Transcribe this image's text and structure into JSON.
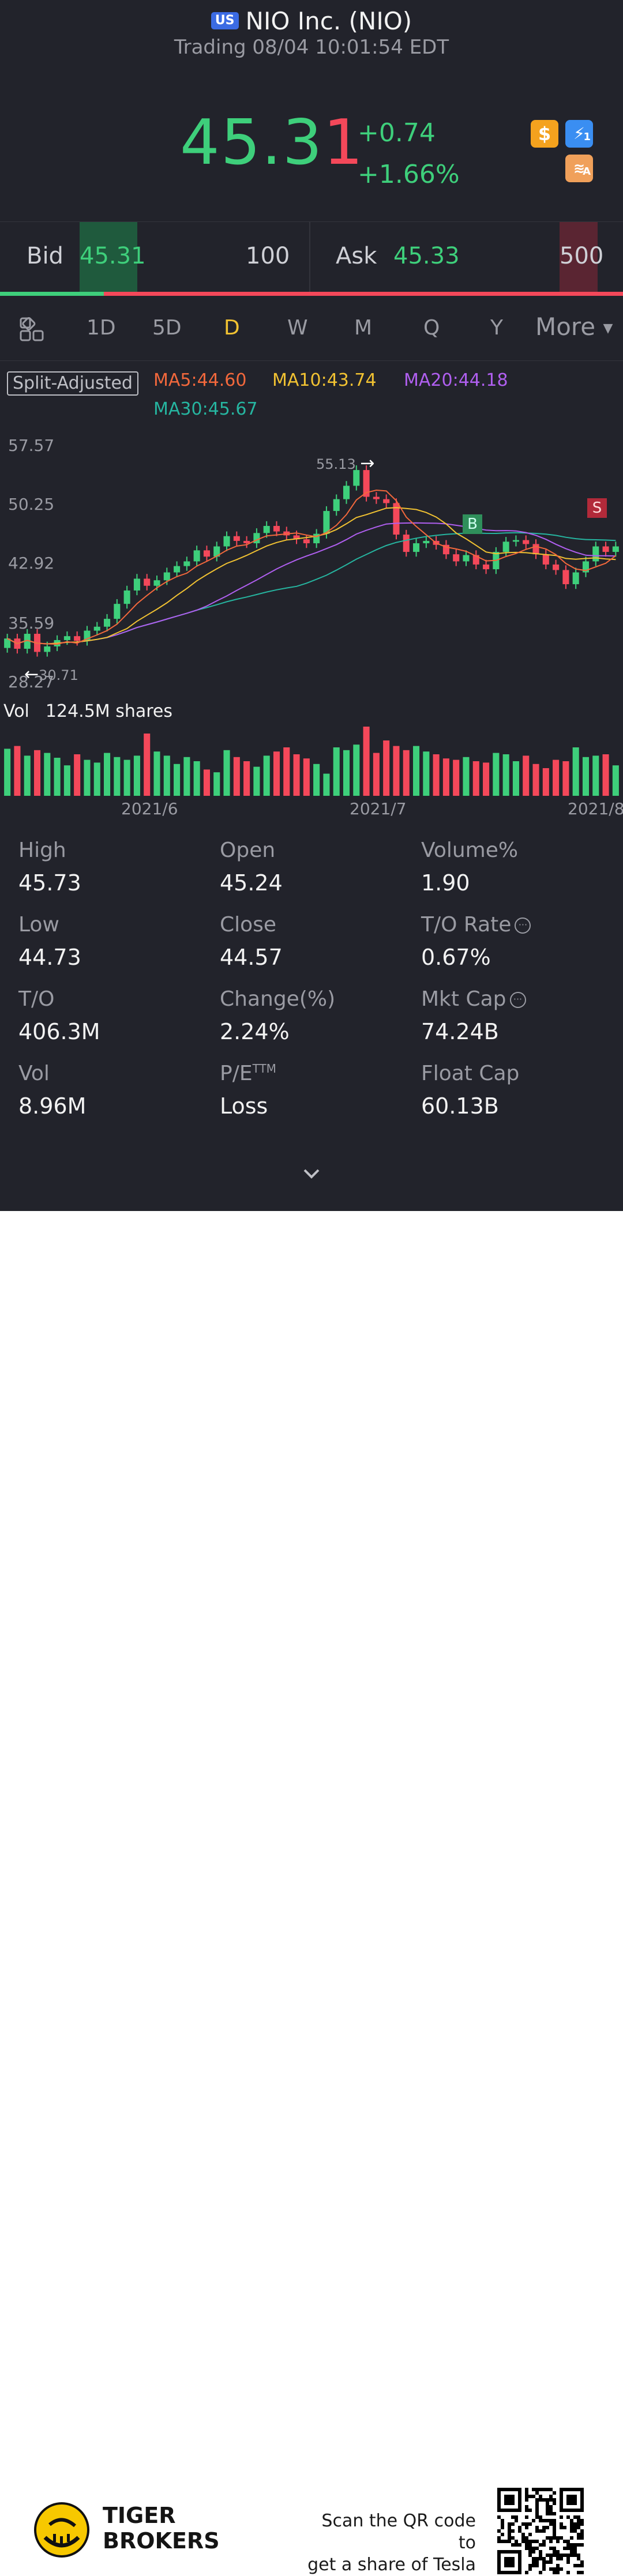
{
  "header": {
    "market_badge": "US",
    "title": "NIO Inc. (NIO)",
    "status": "Trading 08/04 10:01:54 EDT"
  },
  "quote": {
    "price_main": "45.3",
    "price_last": "1",
    "change": "+0.74",
    "change_pct": "+1.66%",
    "up_color": "#3ecf7b",
    "down_color": "#f4485a"
  },
  "badges": [
    "dollar-icon",
    "lightning-icon",
    "layers-icon"
  ],
  "badge_sub": {
    "lightning": "1",
    "layers": "A"
  },
  "orderbook": {
    "bid_label": "Bid",
    "bid_price": "45.31",
    "bid_qty": "100",
    "ask_label": "Ask",
    "ask_price": "45.33",
    "ask_qty": "500",
    "bid_ratio": 0.167
  },
  "period_tabs": [
    "1D",
    "5D",
    "D",
    "W",
    "M",
    "Q",
    "Y",
    "More"
  ],
  "active_tab": "D",
  "indicators": {
    "split_label": "Split-Adjusted",
    "ma5": "MA5:44.60",
    "ma10": "MA10:43.74",
    "ma20": "MA20:44.18",
    "ma30": "MA30:45.67",
    "ma5_color": "#f2683c",
    "ma10_color": "#f1c232",
    "ma20_color": "#b05ff0",
    "ma30_color": "#26b5a0"
  },
  "chart_data": {
    "type": "candlestick",
    "y_ticks": [
      "57.57",
      "50.25",
      "42.92",
      "35.59",
      "28.27"
    ],
    "x_ticks": [
      "2021/6",
      "2021/7",
      "2021/8"
    ],
    "high_marker": "55.13",
    "low_marker": "30.71",
    "markers": [
      "B",
      "S"
    ],
    "volume_label": "Vol",
    "volume_value": "124.5M shares",
    "closes": [
      33.6,
      32.3,
      34.2,
      31.9,
      32.6,
      33.4,
      33.9,
      33.3,
      34.6,
      35.1,
      36.1,
      38.0,
      39.7,
      41.2,
      40.3,
      41.0,
      42.0,
      42.8,
      43.4,
      44.8,
      44.0,
      45.3,
      46.6,
      46.0,
      45.7,
      47.0,
      47.9,
      47.2,
      46.7,
      46.2,
      45.7,
      46.9,
      49.8,
      51.3,
      53.0,
      55.0,
      51.6,
      51.3,
      50.8,
      46.8,
      44.6,
      45.7,
      46.0,
      45.5,
      44.3,
      43.4,
      44.2,
      43.0,
      42.4,
      44.6,
      45.9,
      46.1,
      45.6,
      44.3,
      43.0,
      42.3,
      40.5,
      42.0,
      43.4,
      45.3,
      44.6,
      45.3
    ],
    "opens": [
      32.4,
      33.6,
      32.3,
      34.2,
      31.9,
      32.6,
      33.4,
      33.9,
      33.3,
      34.6,
      35.1,
      36.1,
      38.0,
      39.7,
      41.2,
      40.3,
      41.0,
      42.0,
      42.8,
      43.4,
      44.8,
      44.0,
      45.3,
      46.6,
      46.0,
      45.7,
      47.0,
      47.9,
      47.2,
      46.7,
      46.2,
      45.7,
      46.9,
      49.8,
      51.3,
      53.0,
      55.0,
      51.6,
      51.3,
      50.8,
      46.8,
      44.6,
      45.7,
      46.0,
      45.5,
      44.3,
      43.4,
      44.2,
      43.0,
      42.4,
      44.6,
      45.9,
      46.1,
      45.6,
      44.3,
      43.0,
      42.3,
      40.5,
      42.0,
      43.4,
      45.3,
      44.6
    ],
    "volumes": [
      68,
      72,
      58,
      66,
      62,
      55,
      44,
      60,
      52,
      48,
      62,
      56,
      52,
      58,
      90,
      64,
      58,
      46,
      56,
      50,
      38,
      34,
      66,
      56,
      50,
      42,
      58,
      64,
      70,
      60,
      54,
      46,
      32,
      70,
      66,
      74,
      100,
      62,
      80,
      72,
      66,
      72,
      64,
      60,
      54,
      52,
      56,
      50,
      48,
      62,
      60,
      50,
      58,
      46,
      40,
      52,
      50,
      70,
      56,
      58,
      60,
      44
    ],
    "vol_up_color": "#3ecf7b",
    "vol_down_color": "#f4485a"
  },
  "stats": [
    {
      "label": "High",
      "value": "45.73"
    },
    {
      "label": "Open",
      "value": "45.24"
    },
    {
      "label": "Volume%",
      "value": "1.90"
    },
    {
      "label": "Low",
      "value": "44.73"
    },
    {
      "label": "Close",
      "value": "44.57"
    },
    {
      "label": "T/O Rate",
      "value": "0.67%",
      "info": true
    },
    {
      "label": "T/O",
      "value": "406.3M"
    },
    {
      "label": "Change(%)",
      "value": "2.24%"
    },
    {
      "label": "Mkt Cap",
      "value": "74.24B",
      "info": true
    },
    {
      "label": "Vol",
      "value": "8.96M"
    },
    {
      "label": "P/E",
      "label_sup": "TTM",
      "value": "Loss"
    },
    {
      "label": "Float Cap",
      "value": "60.13B"
    }
  ],
  "footer": {
    "brand_line1": "TIGER",
    "brand_line2": "BROKERS",
    "scan_line1": "Scan the QR code to",
    "scan_line2": "get a share of Tesla"
  }
}
